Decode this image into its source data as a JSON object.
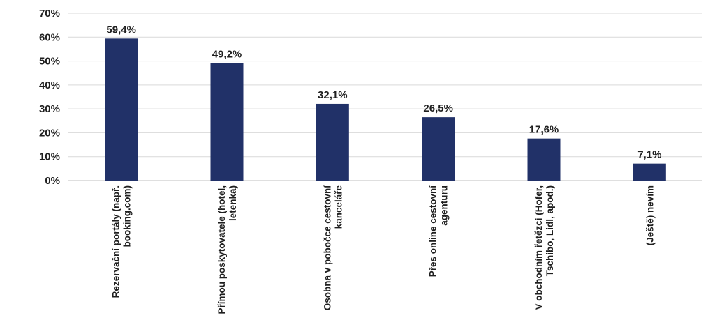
{
  "chart_data": {
    "type": "bar",
    "categories": [
      [
        "Rezervační portály (např.",
        "booking.com)"
      ],
      [
        "Přímou poskytovatele (hotel,",
        "letenka)"
      ],
      [
        "Osobna v pobočce cestovní",
        "kanceláře"
      ],
      [
        "Přes online cestovní",
        "agenturu"
      ],
      [
        "V obchodním řetězci (Hofer,",
        "Tschibo, Lidl, apod.)"
      ],
      [
        "(Ještě) nevím"
      ]
    ],
    "values": [
      59.4,
      49.2,
      32.1,
      26.5,
      17.6,
      7.1
    ],
    "value_labels": [
      "59,4%",
      "49,2%",
      "32,1%",
      "26,5%",
      "17,6%",
      "7,1%"
    ],
    "y_ticks": [
      "0%",
      "10%",
      "20%",
      "30%",
      "40%",
      "50%",
      "60%",
      "70%"
    ],
    "ylim": [
      0,
      70
    ],
    "grid": true,
    "bar_color": "#213168",
    "title": "",
    "xlabel": "",
    "ylabel": ""
  }
}
